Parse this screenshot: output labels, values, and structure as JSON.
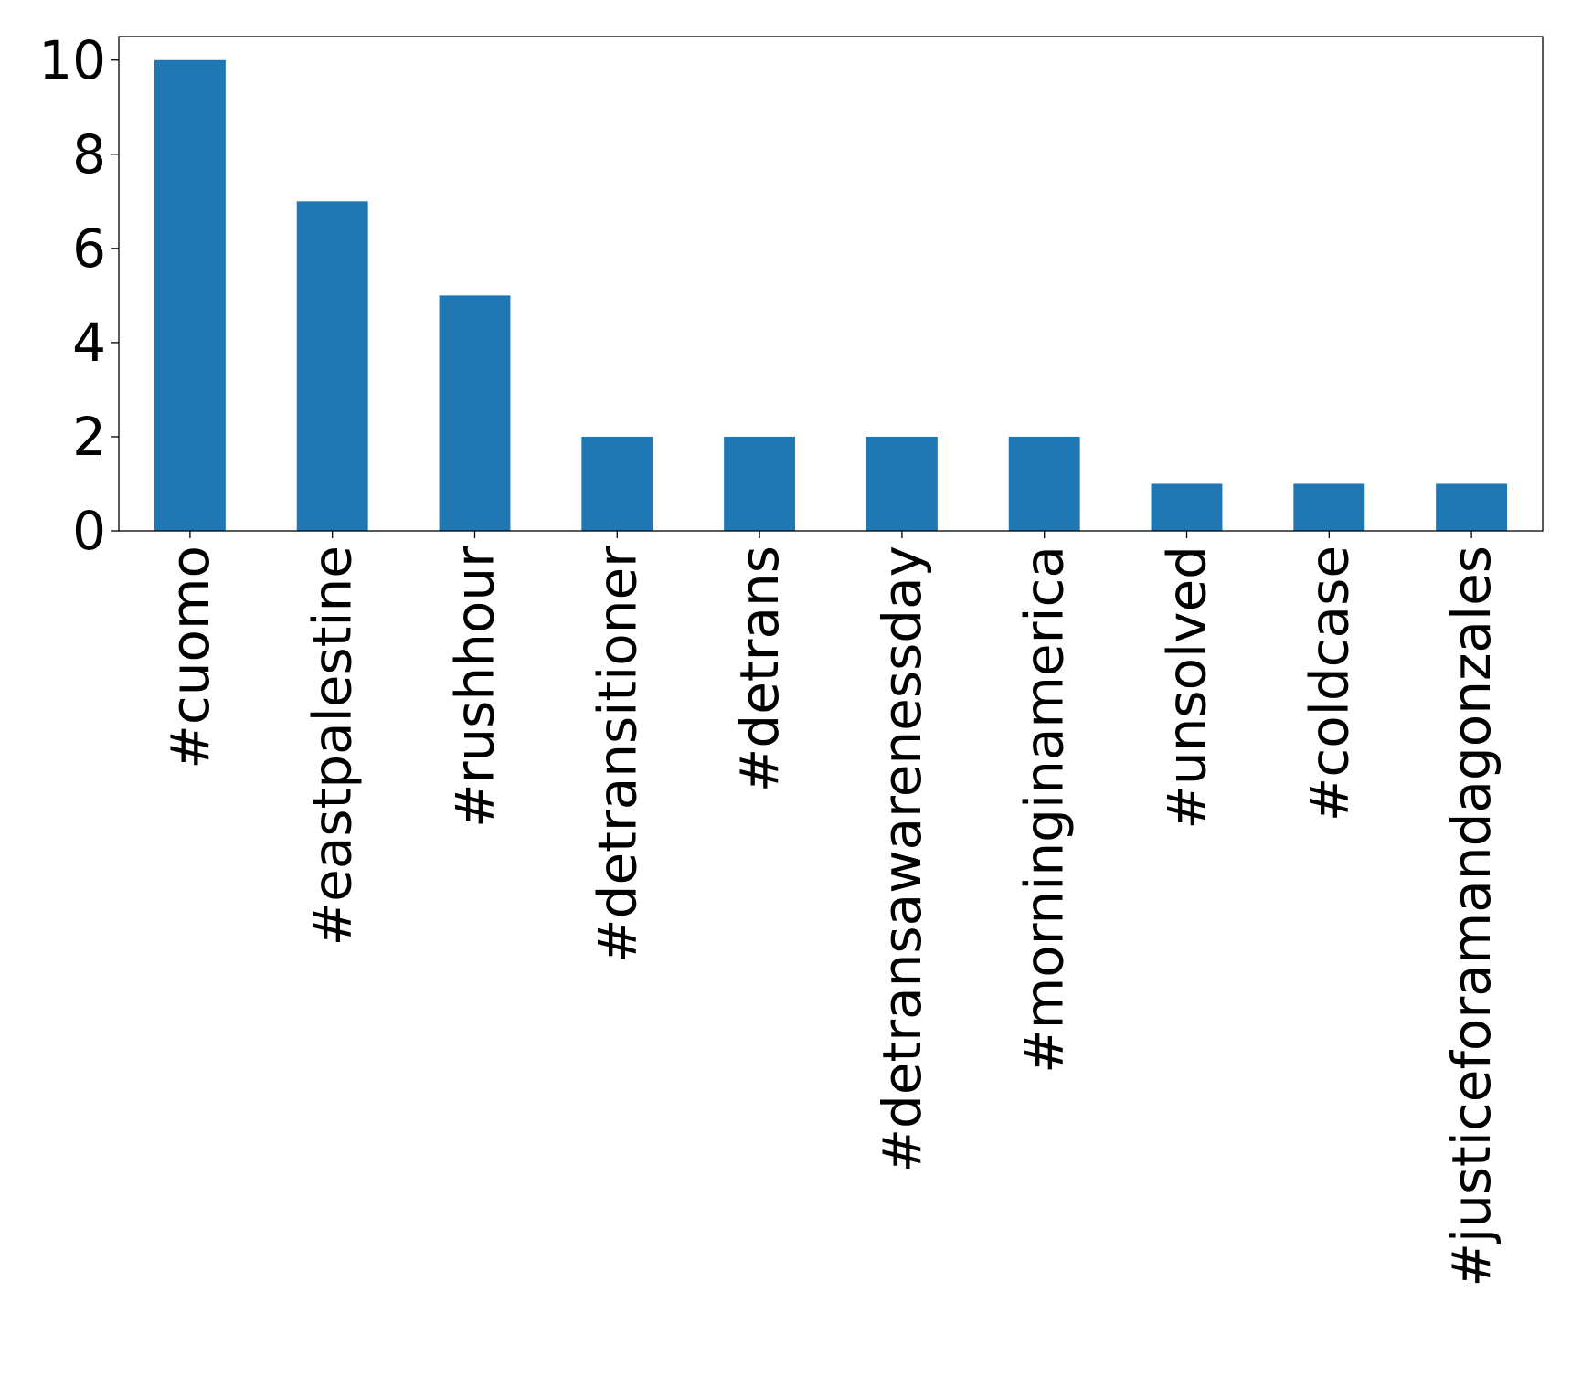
{
  "chart_data": {
    "type": "bar",
    "title": "",
    "xlabel": "",
    "ylabel": "",
    "categories": [
      "#cuomo",
      "#eastpalestine",
      "#rushhour",
      "#detransitioner",
      "#detrans",
      "#detransawarenessday",
      "#morninginamerica",
      "#unsolved",
      "#coldcase",
      "#justiceforamandagonzales"
    ],
    "values": [
      10,
      7,
      5,
      2,
      2,
      2,
      2,
      1,
      1,
      1
    ],
    "ylim": [
      0,
      10.5
    ],
    "yticks": [
      0,
      2,
      4,
      6,
      8,
      10
    ],
    "ytick_labels": [
      "0",
      "2",
      "4",
      "6",
      "8",
      "10"
    ],
    "bar_color": "#1f77b4",
    "grid": false,
    "legend": "none",
    "x_tick_rotation": "vertical"
  }
}
